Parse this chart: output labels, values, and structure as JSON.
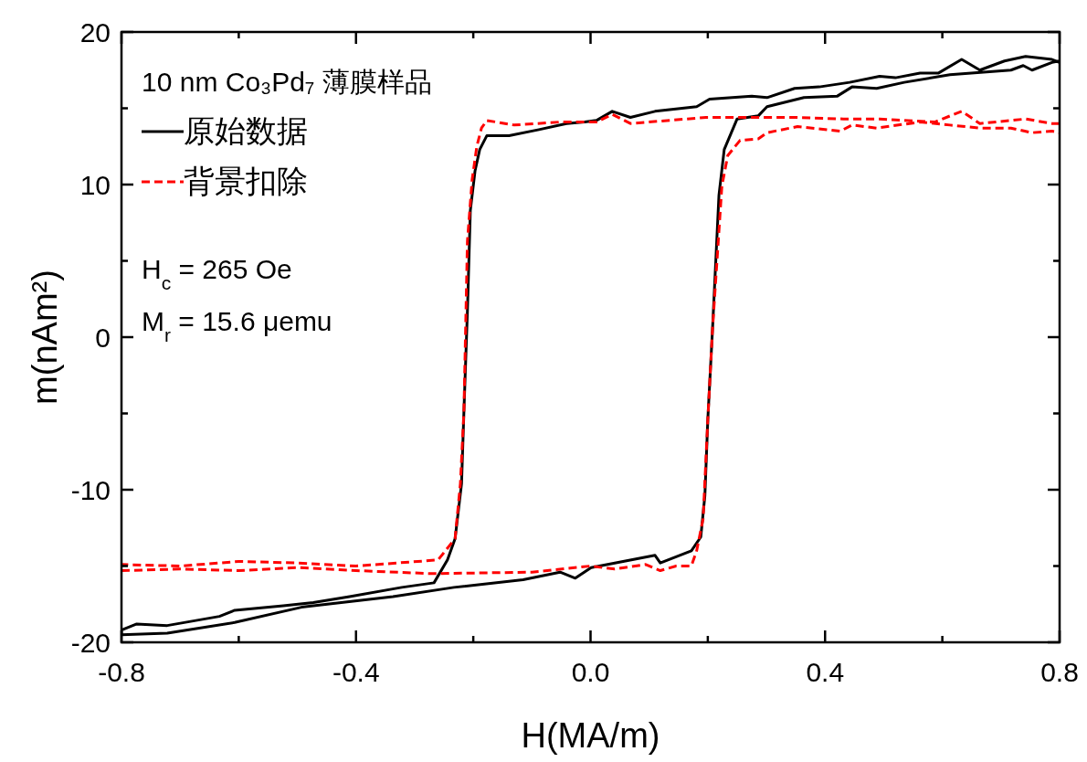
{
  "chart_data": {
    "type": "line",
    "xlabel": "H(MA/m)",
    "ylabel": "m(nAm²)",
    "legend_title": "10 nm Co₃Pd₇ 薄膜样品",
    "legend": "top left",
    "annotations": [
      "H$_{c}$ = 265 Oe",
      "M$_{r}$ = 15.6 μemu"
    ],
    "xlim": [
      -0.8,
      0.8
    ],
    "ylim": [
      -20,
      20
    ],
    "xticks": [
      -0.8,
      {
        "value": -0.6,
        "label": null
      },
      -0.4,
      {
        "value": -0.2,
        "label": null
      },
      {
        "value": 0,
        "label": "0.0"
      },
      {
        "value": 0.2,
        "label": null
      },
      0.4,
      {
        "value": 0.6,
        "label": null
      },
      0.8
    ],
    "yticks": [
      -20,
      {
        "value": -15,
        "label": null
      },
      -10,
      {
        "value": -5,
        "label": null
      },
      0,
      {
        "value": 5,
        "label": null
      },
      10,
      {
        "value": 15,
        "label": null
      },
      20
    ],
    "series": [
      {
        "name": "原始数据",
        "color": "#000000",
        "line_style": "solid",
        "x": [
          0.8,
          0.787,
          0.742,
          0.706,
          0.664,
          0.633,
          0.593,
          0.562,
          0.52,
          0.493,
          0.442,
          0.39,
          0.348,
          0.301,
          0.275,
          0.203,
          0.181,
          0.11,
          0.068,
          0.037,
          0.01,
          -0.01,
          -0.041,
          -0.088,
          -0.139,
          -0.177,
          -0.189,
          -0.197,
          -0.205,
          -0.21,
          -0.216,
          -0.22,
          -0.231,
          -0.244,
          -0.267,
          -0.322,
          -0.411,
          -0.473,
          -0.524,
          -0.607,
          -0.633,
          -0.722,
          -0.774,
          -0.8,
          -0.8,
          -0.722,
          -0.607,
          -0.493,
          -0.337,
          -0.233,
          -0.115,
          -0.052,
          -0.026,
          0.001,
          0.11,
          0.119,
          0.172,
          0.188,
          0.195,
          0.2,
          0.208,
          0.219,
          0.228,
          0.25,
          0.286,
          0.301,
          0.364,
          0.421,
          0.446,
          0.488,
          0.535,
          0.613,
          0.717,
          0.738,
          0.753,
          0.787,
          0.8
        ],
        "values": [
          18.0,
          18.2,
          18.4,
          18.1,
          17.5,
          18.2,
          17.3,
          17.3,
          17.0,
          17.1,
          16.7,
          16.4,
          16.3,
          15.7,
          15.8,
          15.6,
          15.1,
          14.8,
          14.4,
          14.8,
          14.2,
          14.1,
          14.0,
          13.6,
          13.2,
          13.2,
          12.3,
          10.9,
          8.3,
          1.7,
          -4.9,
          -9.6,
          -13.2,
          -14.6,
          -16.1,
          -16.4,
          -17.0,
          -17.4,
          -17.6,
          -17.9,
          -18.3,
          -18.9,
          -18.8,
          -19.2,
          -19.5,
          -19.4,
          -18.7,
          -17.7,
          -17.0,
          -16.4,
          -15.9,
          -15.4,
          -15.8,
          -15.1,
          -14.3,
          -14.8,
          -14.0,
          -13.1,
          -10.4,
          -5.4,
          0.5,
          9.3,
          12.3,
          14.3,
          14.5,
          15.1,
          15.7,
          15.8,
          16.4,
          16.3,
          16.7,
          17.2,
          17.5,
          17.8,
          17.5,
          18.0,
          18.1
        ]
      },
      {
        "name": "背景扣除",
        "color": "#ff0000",
        "line_style": "dashed",
        "x": [
          0.8,
          0.787,
          0.742,
          0.664,
          0.633,
          0.587,
          0.493,
          0.431,
          0.348,
          0.197,
          0.068,
          0.037,
          0.01,
          -0.052,
          -0.13,
          -0.177,
          -0.186,
          -0.194,
          -0.202,
          -0.21,
          -0.216,
          -0.222,
          -0.231,
          -0.26,
          -0.4,
          -0.5,
          -0.6,
          -0.7,
          -0.8,
          -0.8,
          -0.7,
          -0.6,
          -0.5,
          -0.4,
          -0.27,
          -0.1,
          0.0,
          0.041,
          0.094,
          0.119,
          0.146,
          0.172,
          0.181,
          0.192,
          0.2,
          0.208,
          0.224,
          0.234,
          0.255,
          0.286,
          0.301,
          0.353,
          0.426,
          0.446,
          0.488,
          0.562,
          0.613,
          0.664,
          0.717,
          0.753,
          0.787,
          0.8
        ],
        "values": [
          14.0,
          14.0,
          14.3,
          14.0,
          14.8,
          14.1,
          14.3,
          14.3,
          14.4,
          14.4,
          14.0,
          14.6,
          14.1,
          14.1,
          13.9,
          14.2,
          13.7,
          12.5,
          10.3,
          6.3,
          -4.9,
          -9.6,
          -13.2,
          -14.6,
          -15.0,
          -14.8,
          -14.7,
          -15.0,
          -14.9,
          -15.3,
          -15.2,
          -15.3,
          -15.1,
          -15.3,
          -15.5,
          -15.4,
          -15.0,
          -15.2,
          -14.9,
          -15.3,
          -15.0,
          -15.0,
          -14.0,
          -11.9,
          -5.4,
          0.5,
          9.9,
          11.9,
          12.9,
          13.0,
          13.4,
          13.8,
          13.5,
          13.9,
          13.7,
          14.1,
          13.9,
          13.7,
          13.7,
          13.4,
          13.5,
          13.4
        ]
      }
    ]
  }
}
